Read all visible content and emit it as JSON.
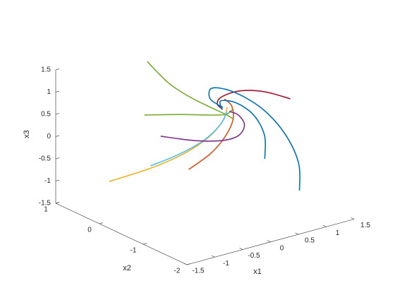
{
  "chart_data": {
    "type": "line3",
    "xlabel": "x1",
    "ylabel": "x2",
    "zlabel": "x3",
    "xlim": [
      -1.5,
      1.5
    ],
    "ylim": [
      -2,
      1
    ],
    "zlim": [
      -1.5,
      1.5
    ],
    "xticks": [
      -1.5,
      -1,
      -0.5,
      0,
      0.5,
      1,
      1.5
    ],
    "yticks": [
      -2,
      -1,
      0,
      1
    ],
    "zticks": [
      -1.5,
      -1,
      -0.5,
      0,
      0.5,
      1,
      1.5
    ],
    "series": [
      {
        "color": "#77ac30",
        "x": [
          -0.15,
          -0.11,
          0.01,
          0.21,
          0.32,
          0.35
        ],
        "y": [
          0.63,
          0.18,
          -0.16,
          -0.39,
          -0.57,
          -0.69
        ],
        "z": [
          1.4,
          1.1,
          0.9,
          0.7,
          0.6,
          0.55
        ]
      },
      {
        "color": "#77ac30",
        "x": [
          -0.4,
          -0.04,
          0.21,
          0.37,
          0.52
        ],
        "y": [
          0.37,
          0.02,
          -0.3,
          -0.5,
          -0.47
        ],
        "z": [
          0.4,
          0.45,
          0.5,
          0.55,
          0.6
        ]
      },
      {
        "color": "#edb120",
        "x": [
          -1.44,
          -0.85,
          -0.36,
          0.1,
          0.48,
          0.62
        ],
        "y": [
          -0.15,
          -0.36,
          -0.47,
          -0.45,
          -0.31,
          -0.22
        ],
        "z": [
          -0.5,
          -0.3,
          -0.1,
          0.1,
          0.3,
          0.5
        ]
      },
      {
        "color": "#4dbeee",
        "x": [
          -0.81,
          -0.4,
          0.0,
          0.37,
          0.51
        ],
        "y": [
          -0.29,
          -0.44,
          -0.49,
          -0.4,
          -0.35
        ],
        "z": [
          -0.3,
          -0.1,
          0.1,
          0.3,
          0.5
        ]
      },
      {
        "color": "#d95319",
        "x": [
          -0.14,
          0.16,
          0.39,
          0.59,
          0.7,
          0.68
        ],
        "y": [
          -0.31,
          -0.42,
          -0.45,
          -0.39,
          -0.22,
          -0.08
        ],
        "z": [
          -0.6,
          -0.3,
          0,
          0.3,
          0.5,
          0.6
        ]
      },
      {
        "color": "#7e2f8e",
        "x": [
          -0.3,
          -0.03,
          0.24,
          0.44,
          0.6,
          0.61,
          0.54
        ],
        "y": [
          0.13,
          -0.28,
          -0.59,
          -0.71,
          -0.64,
          -0.49,
          -0.37
        ],
        "z": [
          0,
          0,
          0.05,
          0.15,
          0.3,
          0.45,
          0.5
        ]
      },
      {
        "color": "#a2142f",
        "x": [
          1.43,
          1.2,
          0.94,
          0.65,
          0.48,
          0.46
        ],
        "y": [
          -0.63,
          -0.33,
          -0.1,
          -0.06,
          -0.17,
          -0.32
        ],
        "z": [
          0.6,
          0.7,
          0.7,
          0.65,
          0.6,
          0.55
        ]
      },
      {
        "color": "#0072bd",
        "x": [
          1.25,
          1.38,
          1.4,
          1.31,
          1.06,
          0.69,
          0.52,
          0.51
        ],
        "y": [
          -1.07,
          -0.88,
          -0.53,
          -0.12,
          0.21,
          0.22,
          0.04,
          -0.26
        ],
        "z": [
          -1.2,
          -0.7,
          -0.2,
          0.2,
          0.5,
          0.7,
          0.6,
          0.55
        ]
      },
      {
        "color": "#0072bd",
        "x": [
          0.98,
          1.11,
          1.05,
          0.88,
          0.59,
          0.45
        ],
        "y": [
          -0.62,
          -0.45,
          -0.28,
          -0.1,
          -0.11,
          -0.32
        ],
        "z": [
          -0.6,
          -0.2,
          0.2,
          0.45,
          0.6,
          0.55
        ]
      }
    ]
  }
}
